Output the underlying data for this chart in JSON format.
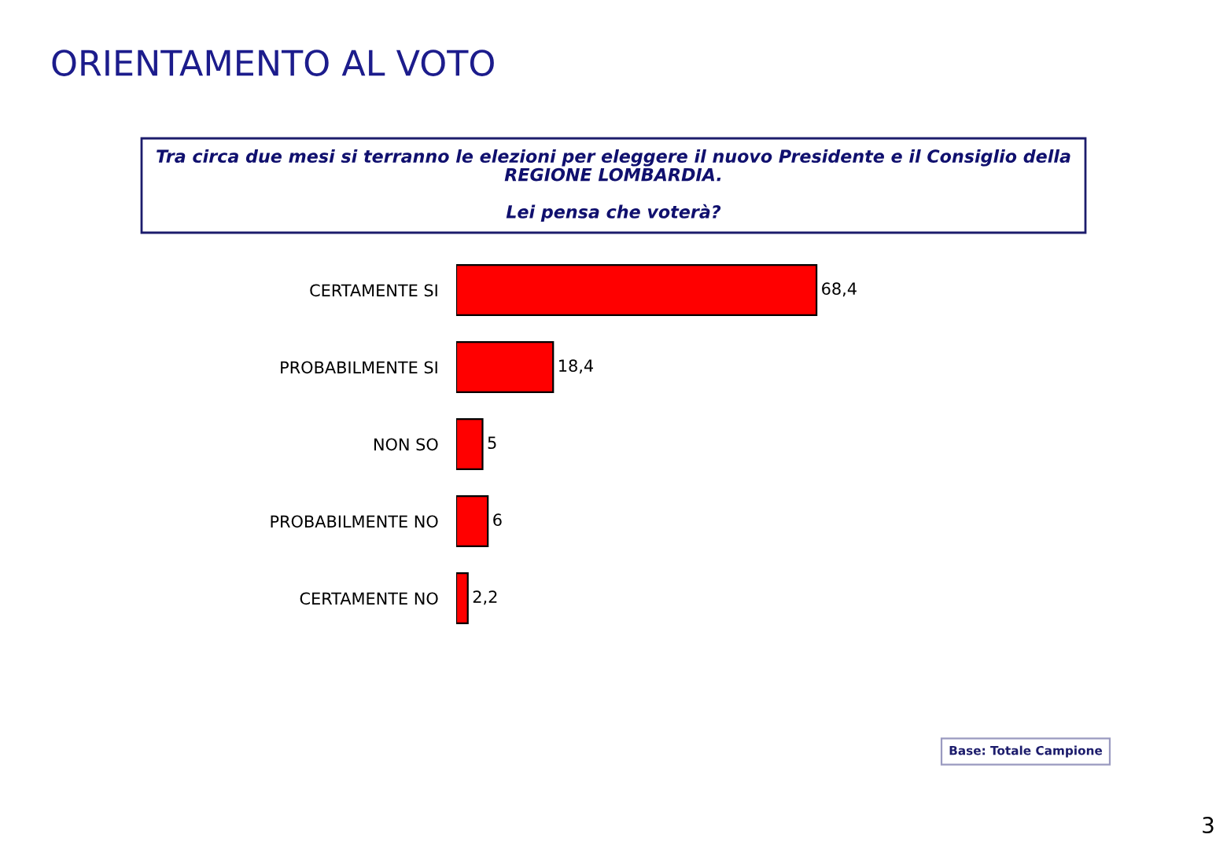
{
  "chart_data": {
    "type": "bar",
    "orientation": "horizontal",
    "title": "ORIENTAMENTO AL VOTO",
    "subtitle": "Tra circa due mesi si terranno le elezioni per eleggere il nuovo Presidente e il Consiglio della\nREGIONE LOMBARDIA.\n\nLei pensa che voterà?",
    "categories": [
      "CERTAMENTE SI",
      "PROBABILMENTE SI",
      "NON SO",
      "PROBABILMENTE NO",
      "CERTAMENTE NO"
    ],
    "values": [
      68.4,
      18.4,
      5,
      6,
      2.2
    ],
    "value_labels": [
      "68,4",
      "18,4",
      "5",
      "6",
      "2,2"
    ],
    "color": "#ff0000",
    "grid": false,
    "legend": false,
    "annotations": [
      "Base: Totale Campione",
      "3"
    ]
  }
}
